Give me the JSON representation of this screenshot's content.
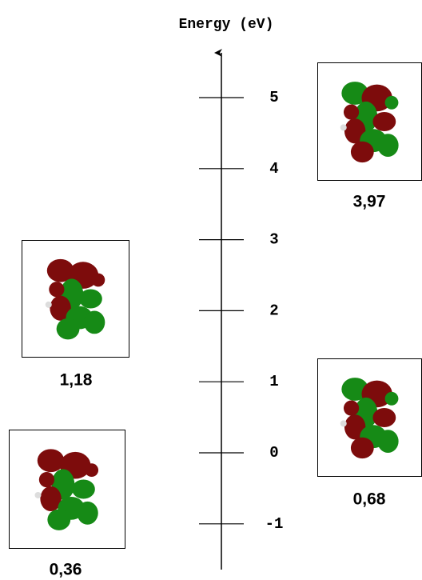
{
  "axis": {
    "title": "Energy (eV)",
    "ticks": [
      5,
      4,
      3,
      2,
      1,
      0,
      -1
    ]
  },
  "orbitals": [
    {
      "label": "3,97"
    },
    {
      "label": "1,18"
    },
    {
      "label": "0,68"
    },
    {
      "label": "0,36"
    }
  ]
}
